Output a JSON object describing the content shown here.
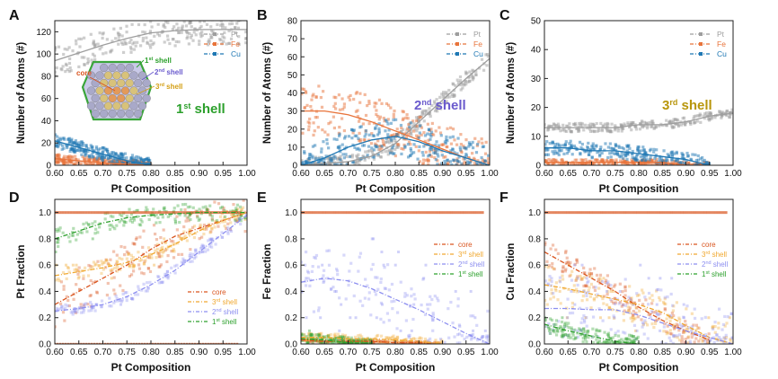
{
  "figure": {
    "x_axis_label": "Pt Composition",
    "x_ticks": [
      "0.60",
      "0.65",
      "0.70",
      "0.75",
      "0.80",
      "0.85",
      "0.90",
      "0.95",
      "1.00"
    ]
  },
  "colors": {
    "Pt": "#9e9e9e",
    "Fe": "#e8743b",
    "Cu": "#1f78b4",
    "core": "#d9541e",
    "third": "#f0a830",
    "second": "#8c8ef0",
    "first": "#2ca02c"
  },
  "chart_data": [
    {
      "panel": "A",
      "type": "scatter",
      "ylabel": "Number of Atoms (#)",
      "xlabel": "Pt Composition",
      "xlim": [
        0.6,
        1.0
      ],
      "ylim": [
        0,
        130
      ],
      "yticks": [
        "0",
        "20",
        "40",
        "60",
        "80",
        "100",
        "120"
      ],
      "annotation": {
        "main": "1",
        "sup": "st",
        "rest": " shell"
      },
      "inset_labels": [
        {
          "t": "core"
        },
        {
          "t": "1",
          "s": "st",
          "r": " shell"
        },
        {
          "t": "2",
          "s": "nd",
          "r": " shell"
        },
        {
          "t": "3",
          "s": "rd",
          "r": " shell"
        }
      ],
      "legend": [
        "Pt",
        "Fe",
        "Cu"
      ],
      "series": [
        {
          "name": "Pt",
          "x": [
            0.6,
            0.65,
            0.7,
            0.75,
            0.8,
            0.85,
            0.9,
            0.95,
            1.0
          ],
          "y": [
            94,
            101,
            108,
            114,
            119,
            121,
            122,
            122,
            122
          ]
        },
        {
          "name": "Fe",
          "x": [
            0.6,
            0.65,
            0.7,
            0.75,
            0.8
          ],
          "y": [
            6,
            4,
            2,
            1,
            0
          ]
        },
        {
          "name": "Cu",
          "x": [
            0.6,
            0.65,
            0.7,
            0.75,
            0.8
          ],
          "y": [
            22,
            16,
            10,
            4,
            0
          ]
        }
      ]
    },
    {
      "panel": "B",
      "type": "scatter",
      "ylabel": "Number of Atoms (#)",
      "xlabel": "Pt Composition",
      "xlim": [
        0.6,
        1.0
      ],
      "ylim": [
        0,
        80
      ],
      "yticks": [
        "0",
        "10",
        "20",
        "30",
        "40",
        "50",
        "60",
        "70",
        "80"
      ],
      "annotation": {
        "main": "2",
        "sup": "nd",
        "rest": " shell"
      },
      "legend": [
        "Pt",
        "Fe",
        "Cu"
      ],
      "series": [
        {
          "name": "Pt",
          "x": [
            0.6,
            0.65,
            0.7,
            0.75,
            0.8,
            0.85,
            0.9,
            0.95,
            1.0
          ],
          "y": [
            0,
            1,
            2,
            5,
            12,
            24,
            36,
            48,
            59
          ]
        },
        {
          "name": "Fe",
          "x": [
            0.6,
            0.65,
            0.7,
            0.75,
            0.8,
            0.85,
            0.9,
            0.95,
            1.0
          ],
          "y": [
            30,
            30,
            28,
            24,
            19,
            14,
            9,
            4,
            0
          ]
        },
        {
          "name": "Cu",
          "x": [
            0.6,
            0.65,
            0.7,
            0.75,
            0.8,
            0.85,
            0.9,
            0.95,
            1.0
          ],
          "y": [
            0,
            4,
            10,
            14,
            16,
            13,
            8,
            4,
            0
          ]
        }
      ]
    },
    {
      "panel": "C",
      "type": "scatter",
      "ylabel": "Number of Atoms (#)",
      "xlabel": "Pt Composition",
      "xlim": [
        0.6,
        1.0
      ],
      "ylim": [
        0,
        50
      ],
      "yticks": [
        "0",
        "10",
        "20",
        "30",
        "40",
        "50"
      ],
      "annotation": {
        "main": "3",
        "sup": "rd",
        "rest": " shell"
      },
      "legend": [
        "Pt",
        "Fe",
        "Cu"
      ],
      "series": [
        {
          "name": "Pt",
          "x": [
            0.6,
            0.65,
            0.7,
            0.75,
            0.8,
            0.85,
            0.9,
            0.95,
            1.0
          ],
          "y": [
            13,
            13,
            13,
            13,
            14,
            14,
            15,
            17,
            18
          ]
        },
        {
          "name": "Fe",
          "x": [
            0.6,
            0.65,
            0.7,
            0.75,
            0.8,
            0.85,
            0.9,
            0.95
          ],
          "y": [
            1,
            1,
            1,
            1,
            1,
            1,
            0,
            0
          ]
        },
        {
          "name": "Cu",
          "x": [
            0.6,
            0.65,
            0.7,
            0.75,
            0.8,
            0.85,
            0.9,
            0.95
          ],
          "y": [
            6,
            6,
            5,
            5,
            4,
            3,
            2,
            0
          ]
        }
      ]
    },
    {
      "panel": "D",
      "type": "line",
      "ylabel": "Pt Fraction",
      "xlabel": "Pt Composition",
      "xlim": [
        0.6,
        1.0
      ],
      "ylim": [
        0,
        1.1
      ],
      "yticks": [
        "0.0",
        "0.2",
        "0.4",
        "0.6",
        "0.8",
        "1.0"
      ],
      "legend": [
        {
          "t": "core"
        },
        {
          "t": "3",
          "s": "rd",
          "r": " shell"
        },
        {
          "t": "2",
          "s": "nd",
          "r": " shell"
        },
        {
          "t": "1",
          "s": "st",
          "r": " shell"
        }
      ],
      "series": [
        {
          "name": "core",
          "x": [
            0.6,
            0.65,
            0.7,
            0.75,
            0.8,
            0.85,
            0.9,
            0.95,
            1.0
          ],
          "y": [
            0.3,
            0.4,
            0.5,
            0.6,
            0.72,
            0.82,
            0.88,
            0.94,
            1.0
          ]
        },
        {
          "name": "3rd shell",
          "x": [
            0.6,
            0.65,
            0.7,
            0.75,
            0.8,
            0.85,
            0.9,
            0.95,
            1.0
          ],
          "y": [
            0.52,
            0.55,
            0.58,
            0.62,
            0.68,
            0.76,
            0.86,
            0.94,
            1.0
          ]
        },
        {
          "name": "2nd shell",
          "x": [
            0.6,
            0.65,
            0.7,
            0.75,
            0.8,
            0.85,
            0.9,
            0.95,
            1.0
          ],
          "y": [
            0.25,
            0.27,
            0.3,
            0.36,
            0.45,
            0.56,
            0.7,
            0.84,
            0.98
          ]
        },
        {
          "name": "1st shell",
          "x": [
            0.6,
            0.65,
            0.7,
            0.75,
            0.8,
            0.85,
            0.9,
            0.95,
            1.0
          ],
          "y": [
            0.8,
            0.86,
            0.92,
            0.96,
            0.98,
            0.99,
            1.0,
            1.0,
            1.0
          ]
        }
      ]
    },
    {
      "panel": "E",
      "type": "line",
      "ylabel": "Fe Fraction",
      "xlabel": "Pt Composition",
      "xlim": [
        0.6,
        1.0
      ],
      "ylim": [
        0,
        1.1
      ],
      "yticks": [
        "0.0",
        "0.2",
        "0.4",
        "0.6",
        "0.8",
        "1.0"
      ],
      "legend": [
        {
          "t": "core"
        },
        {
          "t": "3",
          "s": "rd",
          "r": " shell"
        },
        {
          "t": "2",
          "s": "nd",
          "r": " shell"
        },
        {
          "t": "1",
          "s": "st",
          "r": " shell"
        }
      ],
      "series": [
        {
          "name": "core",
          "x": [
            0.6,
            0.65,
            0.7,
            0.75,
            0.8,
            0.85,
            0.9
          ],
          "y": [
            0.03,
            0.02,
            0.02,
            0.02,
            0.01,
            0.01,
            0.0
          ]
        },
        {
          "name": "3rd shell",
          "x": [
            0.6,
            0.65,
            0.7,
            0.75,
            0.8,
            0.85,
            0.9
          ],
          "y": [
            0.05,
            0.05,
            0.04,
            0.04,
            0.03,
            0.02,
            0.0
          ]
        },
        {
          "name": "2nd shell",
          "x": [
            0.6,
            0.65,
            0.7,
            0.75,
            0.8,
            0.85,
            0.9,
            0.95,
            1.0
          ],
          "y": [
            0.47,
            0.5,
            0.48,
            0.42,
            0.34,
            0.26,
            0.17,
            0.08,
            0.0
          ]
        },
        {
          "name": "1st shell",
          "x": [
            0.6,
            0.65,
            0.7,
            0.75
          ],
          "y": [
            0.04,
            0.03,
            0.01,
            0.0
          ]
        }
      ]
    },
    {
      "panel": "F",
      "type": "line",
      "ylabel": "Cu Fraction",
      "xlabel": "Pt Composition",
      "xlim": [
        0.6,
        1.0
      ],
      "ylim": [
        0,
        1.1
      ],
      "yticks": [
        "0.0",
        "0.2",
        "0.4",
        "0.6",
        "0.8",
        "1.0"
      ],
      "legend": [
        {
          "t": "core"
        },
        {
          "t": "3",
          "s": "rd",
          "r": " shell"
        },
        {
          "t": "2",
          "s": "nd",
          "r": " shell"
        },
        {
          "t": "1",
          "s": "st",
          "r": " shell"
        }
      ],
      "series": [
        {
          "name": "core",
          "x": [
            0.6,
            0.65,
            0.7,
            0.75,
            0.8,
            0.85,
            0.9,
            0.95
          ],
          "y": [
            0.7,
            0.6,
            0.5,
            0.4,
            0.28,
            0.18,
            0.1,
            0.03
          ]
        },
        {
          "name": "3rd shell",
          "x": [
            0.6,
            0.65,
            0.7,
            0.75,
            0.8,
            0.85,
            0.9,
            0.95,
            1.0
          ],
          "y": [
            0.45,
            0.42,
            0.38,
            0.34,
            0.3,
            0.24,
            0.14,
            0.05,
            0.0
          ]
        },
        {
          "name": "2nd shell",
          "x": [
            0.6,
            0.65,
            0.7,
            0.75,
            0.8,
            0.85,
            0.9,
            0.95,
            1.0
          ],
          "y": [
            0.27,
            0.27,
            0.26,
            0.26,
            0.22,
            0.16,
            0.1,
            0.05,
            0.0
          ]
        },
        {
          "name": "1st shell",
          "x": [
            0.6,
            0.65,
            0.7,
            0.75,
            0.8
          ],
          "y": [
            0.15,
            0.1,
            0.06,
            0.02,
            0.0
          ]
        }
      ]
    }
  ]
}
